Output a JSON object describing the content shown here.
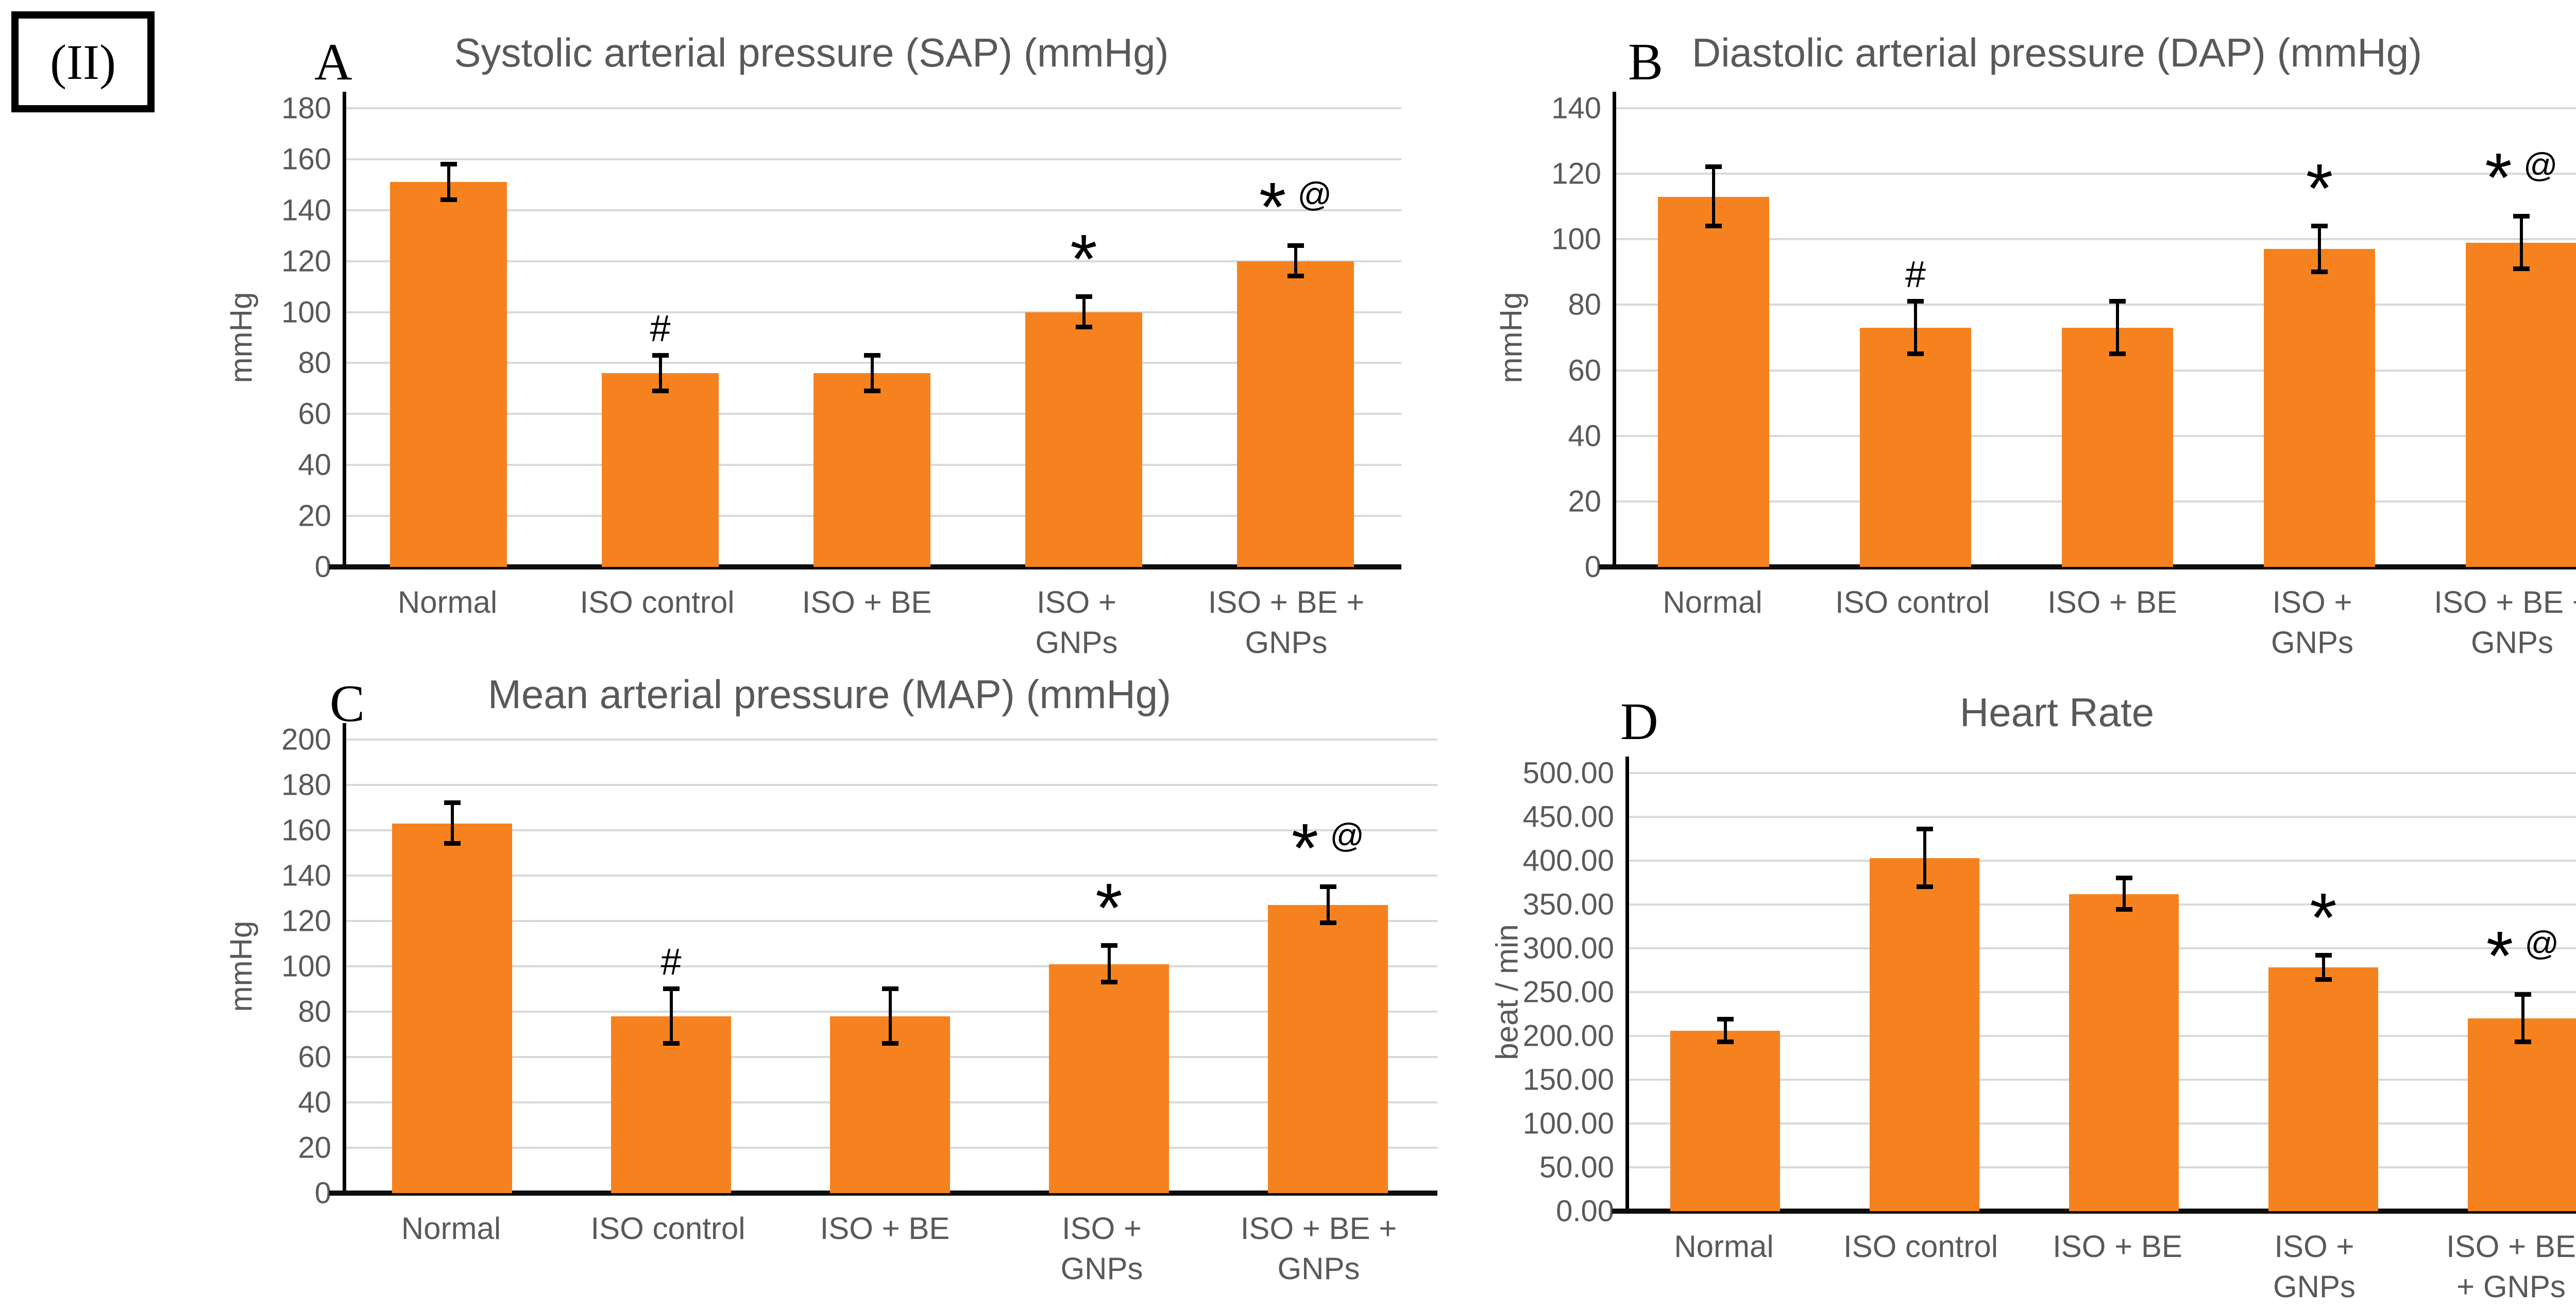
{
  "figure_label": "(II)",
  "colors": {
    "bar": "#F5821F",
    "grid": "#D9D9D9",
    "axis": "#000000",
    "text": "#595959"
  },
  "chart_data": [
    {
      "type": "bar",
      "panel_letter": "A",
      "title": "Systolic arterial pressure (SAP) (mmHg)",
      "ylabel": "mmHg",
      "ylim": [
        0,
        180
      ],
      "grid": true,
      "legend": "none",
      "ytick_labels": [
        "180",
        "160",
        "140",
        "120",
        "100",
        "80",
        "60",
        "40",
        "20",
        "0"
      ],
      "categories": [
        "Normal",
        "ISO control",
        "ISO + BE",
        "ISO +\nGNPs",
        "ISO + BE +\nGNPs"
      ],
      "values": [
        151,
        76,
        76,
        100,
        120
      ],
      "errors": [
        7,
        7,
        7,
        6,
        6
      ],
      "sig": [
        "",
        "#",
        "",
        "*",
        "*@"
      ]
    },
    {
      "type": "bar",
      "panel_letter": "B",
      "title": "Diastolic arterial pressure (DAP) (mmHg)",
      "ylabel": "mmHg",
      "ylim": [
        0,
        140
      ],
      "grid": true,
      "legend": "none",
      "ytick_labels": [
        "140",
        "120",
        "100",
        "80",
        "60",
        "40",
        "20",
        "0"
      ],
      "categories": [
        "Normal",
        "ISO control",
        "ISO + BE",
        "ISO +\nGNPs",
        "ISO + BE +\nGNPs"
      ],
      "values": [
        113,
        73,
        73,
        97,
        99
      ],
      "errors": [
        9,
        8,
        8,
        7,
        8
      ],
      "sig": [
        "",
        "#",
        "",
        "*",
        "*@"
      ]
    },
    {
      "type": "bar",
      "panel_letter": "C",
      "title": "Mean arterial pressure (MAP) (mmHg)",
      "ylabel": "mmHg",
      "ylim": [
        0,
        200
      ],
      "grid": true,
      "legend": "none",
      "ytick_labels": [
        "200",
        "180",
        "160",
        "140",
        "120",
        "100",
        "80",
        "60",
        "40",
        "20",
        "0"
      ],
      "categories": [
        "Normal",
        "ISO control",
        "ISO + BE",
        "ISO +\nGNPs",
        "ISO + BE +\nGNPs"
      ],
      "values": [
        163,
        78,
        78,
        101,
        127
      ],
      "errors": [
        9,
        12,
        12,
        8,
        8
      ],
      "sig": [
        "",
        "#",
        "",
        "*",
        "*@"
      ]
    },
    {
      "type": "bar",
      "panel_letter": "D",
      "title": "Heart Rate",
      "ylabel": "beat / min",
      "ylim": [
        0,
        500
      ],
      "grid": true,
      "legend": "none",
      "ytick_labels": [
        "500.00",
        "450.00",
        "400.00",
        "350.00",
        "300.00",
        "250.00",
        "200.00",
        "150.00",
        "100.00",
        "50.00",
        "0.00"
      ],
      "categories": [
        "Normal",
        "ISO control",
        "ISO + BE",
        "ISO +\nGNPs",
        "ISO + BE\n+ GNPs"
      ],
      "values": [
        206,
        403,
        362,
        278,
        220
      ],
      "errors": [
        13,
        33,
        18,
        14,
        27
      ],
      "sig": [
        "",
        "",
        "",
        "*",
        "*@"
      ]
    }
  ]
}
